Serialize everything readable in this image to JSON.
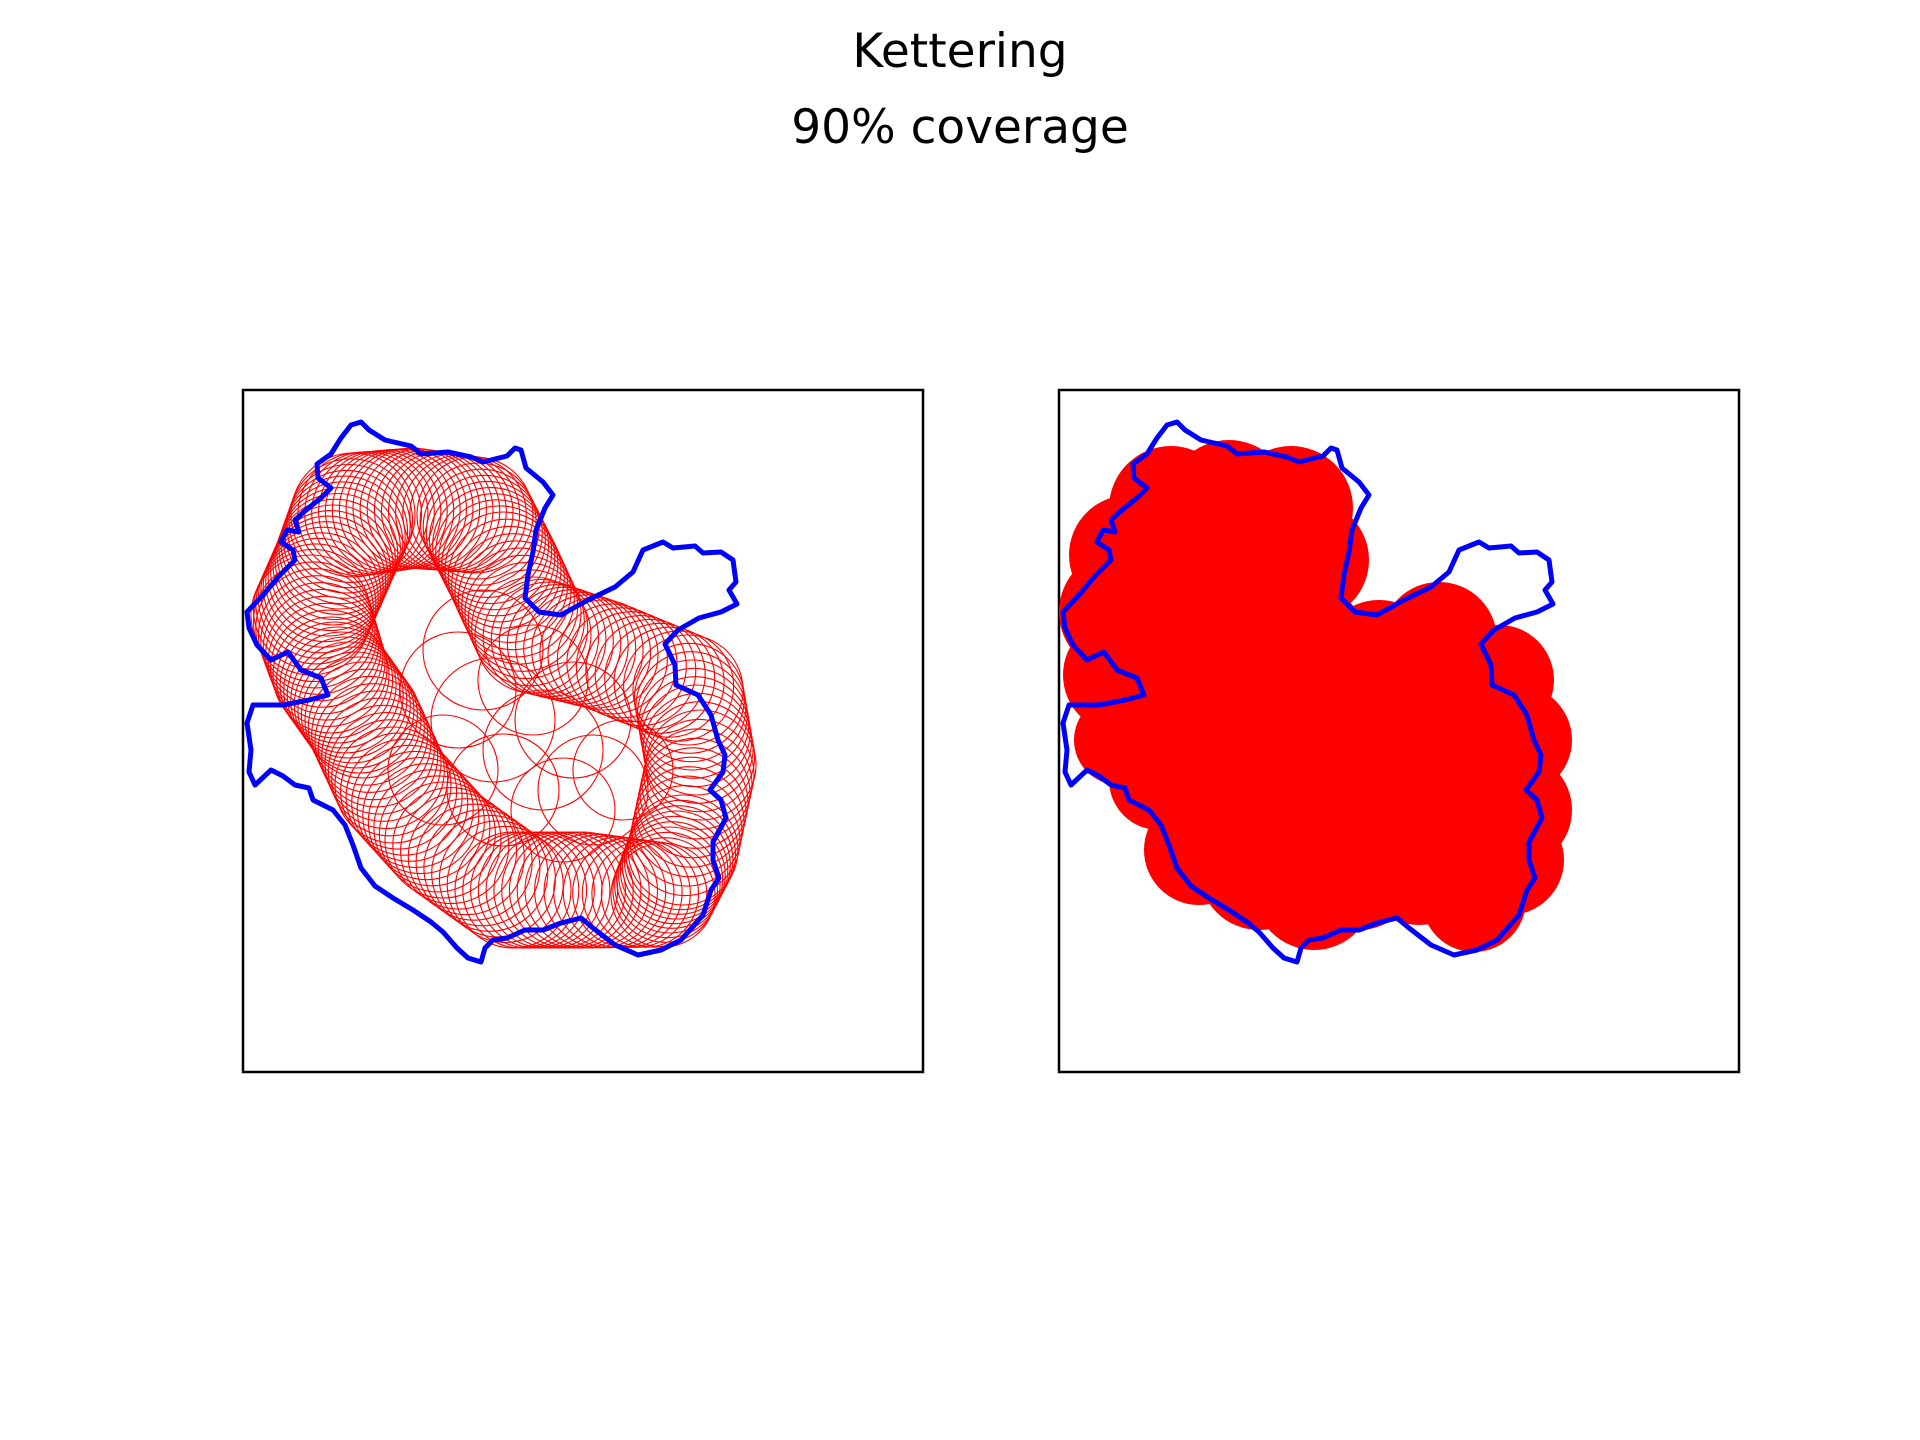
{
  "figure": {
    "title": "Kettering",
    "subtitle": "90% coverage"
  },
  "colors": {
    "boundary": "#0000ff",
    "coverage": "#ff0000",
    "frame": "#000000",
    "background": "#ffffff"
  },
  "panels": [
    {
      "name": "left",
      "style": "outlined circles"
    },
    {
      "name": "right",
      "style": "filled circles"
    }
  ]
}
